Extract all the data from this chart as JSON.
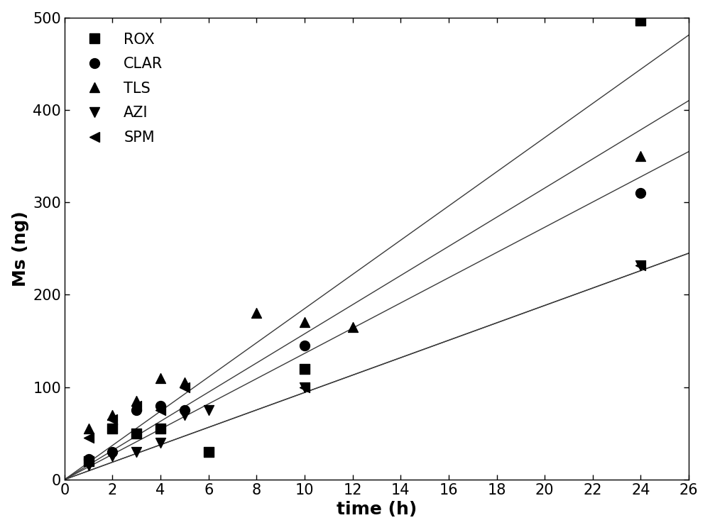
{
  "title": "",
  "xlabel": "time (h)",
  "ylabel": "Ms (ng)",
  "xlim": [
    0,
    26
  ],
  "ylim": [
    0,
    500
  ],
  "xticks": [
    0,
    2,
    4,
    6,
    8,
    10,
    12,
    14,
    16,
    18,
    20,
    22,
    24,
    26
  ],
  "yticks": [
    0,
    100,
    200,
    300,
    400,
    500
  ],
  "series": [
    {
      "label": "ROX",
      "marker": "s",
      "x": [
        1,
        2,
        3,
        4,
        6,
        10,
        24
      ],
      "y": [
        20,
        55,
        50,
        55,
        30,
        120,
        497
      ],
      "slope": 18.5,
      "intercept": 0
    },
    {
      "label": "CLAR",
      "marker": "o",
      "x": [
        1,
        2,
        3,
        4,
        5,
        10,
        24
      ],
      "y": [
        22,
        30,
        75,
        80,
        75,
        145,
        310
      ],
      "slope": 13.65,
      "intercept": 0
    },
    {
      "label": "TLS",
      "marker": "^",
      "x": [
        1,
        2,
        3,
        4,
        5,
        8,
        10,
        12,
        24
      ],
      "y": [
        55,
        70,
        85,
        110,
        105,
        180,
        170,
        165,
        350
      ],
      "slope": 15.77,
      "intercept": 0
    },
    {
      "label": "AZI",
      "marker": "v",
      "x": [
        1,
        2,
        3,
        4,
        5,
        6,
        10,
        24
      ],
      "y": [
        15,
        25,
        30,
        40,
        70,
        75,
        100,
        232
      ],
      "slope": 9.42,
      "intercept": 0
    },
    {
      "label": "SPM",
      "marker": "<",
      "x": [
        1,
        2,
        3,
        4,
        5,
        10,
        24
      ],
      "y": [
        45,
        65,
        80,
        75,
        100,
        100,
        232
      ],
      "slope": 9.42,
      "intercept": 0
    }
  ],
  "line_color": "#3a3a3a",
  "marker_color": "#000000",
  "marker_size": 10,
  "line_width": 1.0,
  "font_size_labels": 18,
  "font_size_ticks": 15,
  "font_size_legend": 15,
  "background_color": "#ffffff",
  "legend_loc": "upper left"
}
